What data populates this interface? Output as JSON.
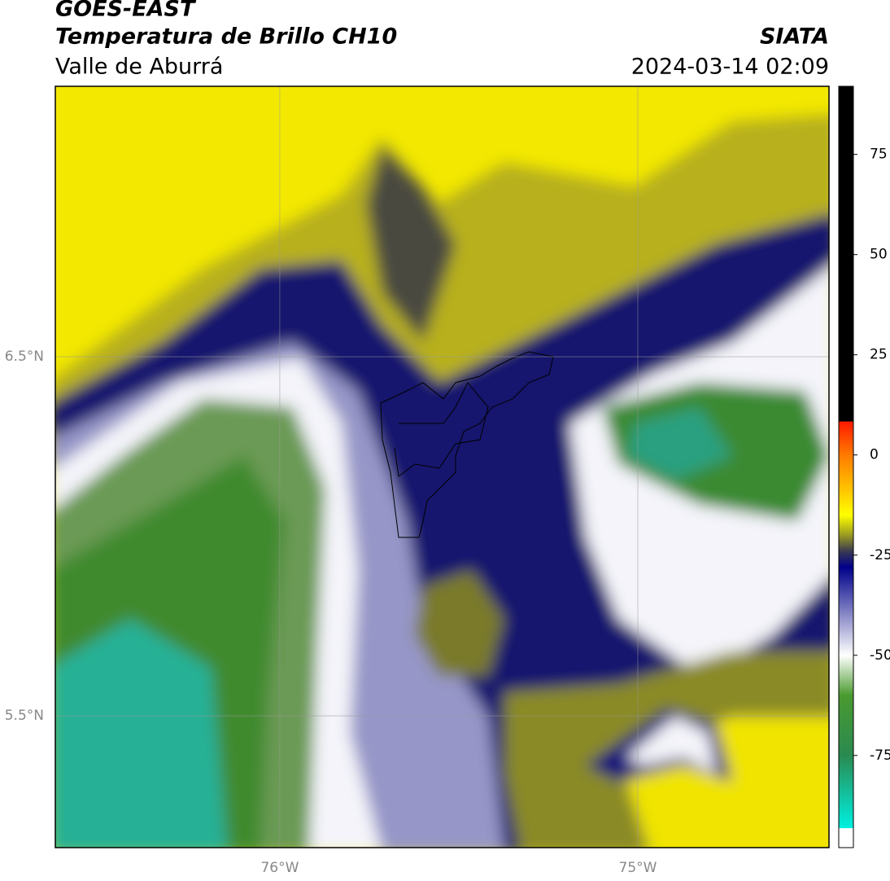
{
  "header": {
    "title": "GOES-EAST",
    "subtitle": "Temperatura de Brillo CH10",
    "region": "Valle de Aburrá",
    "source": "SIATA",
    "datetime": "2024-03-14 02:09"
  },
  "map": {
    "extent": {
      "lon": [
        -76.627,
        -74.466
      ],
      "lat": [
        5.133,
        7.253
      ]
    },
    "lon_ticks": [
      {
        "value": -76,
        "label": "76°W"
      },
      {
        "value": -75,
        "label": "75°W"
      }
    ],
    "lat_ticks": [
      {
        "value": 6.5,
        "label": "6.5°N"
      },
      {
        "value": 5.5,
        "label": "5.5°N"
      }
    ],
    "grid": true
  },
  "colorbar": {
    "lim": [
      -98,
      92
    ],
    "ticks": [
      75,
      50,
      25,
      0,
      -25,
      -50,
      -75
    ],
    "stops": [
      {
        "value": 92,
        "color": "#000000"
      },
      {
        "value": 8.4,
        "color": "#000000"
      },
      {
        "value": 8.3,
        "color": "#ff1a00"
      },
      {
        "value": 0,
        "color": "#ff7a00"
      },
      {
        "value": -10,
        "color": "#ffd000"
      },
      {
        "value": -15,
        "color": "#ffff00"
      },
      {
        "value": -20,
        "color": "#9a9a22"
      },
      {
        "value": -24,
        "color": "#3a3a50"
      },
      {
        "value": -28,
        "color": "#00008a"
      },
      {
        "value": -40,
        "color": "#8a8ac8"
      },
      {
        "value": -50,
        "color": "#ffffff"
      },
      {
        "value": -60,
        "color": "#4a9a30"
      },
      {
        "value": -75,
        "color": "#2a8a50"
      },
      {
        "value": -93.1,
        "color": "#00f0e0"
      },
      {
        "value": -93.2,
        "color": "#ffffff"
      },
      {
        "value": -98,
        "color": "#ffffff"
      }
    ]
  }
}
